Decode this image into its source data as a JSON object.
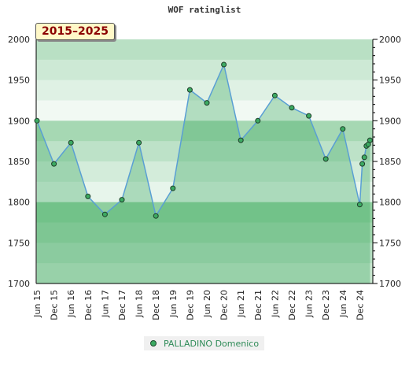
{
  "chart_data": {
    "type": "area",
    "title": "WOF ratinglist",
    "period_label": "2015–2025",
    "ylim": [
      1700,
      2000
    ],
    "yticks": [
      1700,
      1750,
      1800,
      1850,
      1900,
      1950,
      2000
    ],
    "ytick_labels": [
      "1700",
      "1750",
      "1800",
      "1850",
      "1900",
      "1950",
      "2000"
    ],
    "xlim": [
      0,
      19.6
    ],
    "xticks": [
      {
        "x": 0,
        "label": "Jun 15"
      },
      {
        "x": 1,
        "label": "Dec 15"
      },
      {
        "x": 2,
        "label": "Jun 16"
      },
      {
        "x": 3,
        "label": "Dec 16"
      },
      {
        "x": 4,
        "label": "Jun 17"
      },
      {
        "x": 5,
        "label": "Dec 17"
      },
      {
        "x": 6,
        "label": "Jun 18"
      },
      {
        "x": 7,
        "label": "Dec 18"
      },
      {
        "x": 8,
        "label": "Jun 19"
      },
      {
        "x": 9,
        "label": "Dec 19"
      },
      {
        "x": 10,
        "label": "Jun 20"
      },
      {
        "x": 11,
        "label": "Dec 20"
      },
      {
        "x": 12,
        "label": "Jun 21"
      },
      {
        "x": 13,
        "label": "Dec 21"
      },
      {
        "x": 14,
        "label": "Jun 22"
      },
      {
        "x": 15,
        "label": "Dec 22"
      },
      {
        "x": 16,
        "label": "Jun 23"
      },
      {
        "x": 17,
        "label": "Dec 23"
      },
      {
        "x": 18,
        "label": "Jun 24"
      },
      {
        "x": 19,
        "label": "Dec 24"
      }
    ],
    "series": [
      {
        "name": "PALLADINO Domenico",
        "color": "#3caa62",
        "line_color": "#5a9fd4",
        "points": [
          {
            "x": 0,
            "y": 1900
          },
          {
            "x": 1,
            "y": 1847
          },
          {
            "x": 2,
            "y": 1873
          },
          {
            "x": 3,
            "y": 1807
          },
          {
            "x": 4,
            "y": 1785
          },
          {
            "x": 5,
            "y": 1803
          },
          {
            "x": 6,
            "y": 1873
          },
          {
            "x": 7,
            "y": 1783
          },
          {
            "x": 8,
            "y": 1817
          },
          {
            "x": 9,
            "y": 1938
          },
          {
            "x": 10,
            "y": 1922
          },
          {
            "x": 11,
            "y": 1969
          },
          {
            "x": 12,
            "y": 1876
          },
          {
            "x": 13,
            "y": 1900
          },
          {
            "x": 14,
            "y": 1931
          },
          {
            "x": 15,
            "y": 1916
          },
          {
            "x": 16,
            "y": 1906
          },
          {
            "x": 17,
            "y": 1853
          },
          {
            "x": 18,
            "y": 1890
          },
          {
            "x": 19,
            "y": 1797
          },
          {
            "x": 19.15,
            "y": 1847
          },
          {
            "x": 19.27,
            "y": 1855
          },
          {
            "x": 19.39,
            "y": 1869
          },
          {
            "x": 19.5,
            "y": 1871
          },
          {
            "x": 19.6,
            "y": 1876
          }
        ]
      }
    ],
    "band_colors": [
      "#b9e0c4",
      "#cde9d5",
      "#dff1e4",
      "#f1f9f3",
      "#a6d8b3",
      "#bde2c8",
      "#d3ecda",
      "#e7f5eb",
      "#8fcf9f",
      "#a1d6ae",
      "#b5deC1",
      "#c9e6cf"
    ],
    "legend_position": "bottom-center",
    "grid": false
  }
}
